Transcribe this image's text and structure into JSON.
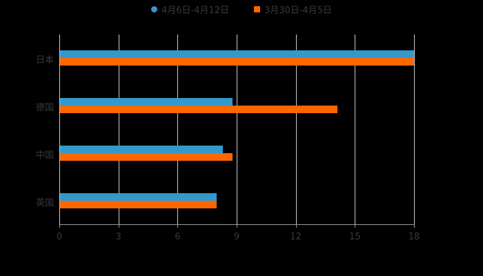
{
  "chart_data": {
    "type": "bar",
    "orientation": "horizontal",
    "title": "",
    "categories": [
      "日本",
      "德国",
      "中国",
      "英国"
    ],
    "series": [
      {
        "name": "4月6日-4月12日",
        "color": "#3399cc",
        "values": [
          18,
          8.8,
          8.3,
          8.0
        ]
      },
      {
        "name": "3月30日-4月5日",
        "color": "#ff6600",
        "values": [
          18,
          14.1,
          8.8,
          8.0
        ]
      }
    ],
    "xlabel": "",
    "ylabel": "",
    "xlim": [
      0,
      18
    ],
    "xticks": [
      "0",
      "3",
      "6",
      "9",
      "12",
      "15",
      "18"
    ],
    "grid": true,
    "legend_position": "top"
  },
  "legend": [
    {
      "label": "4月6日-4月12日",
      "color": "#3399cc",
      "shape": "circle"
    },
    {
      "label": "3月30日-4月5日",
      "color": "#ff6600",
      "shape": "square"
    }
  ]
}
